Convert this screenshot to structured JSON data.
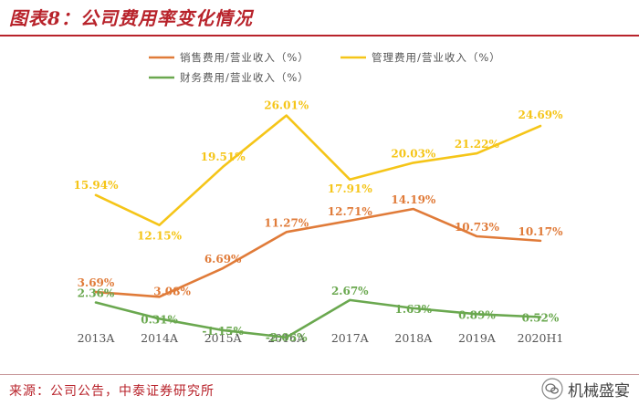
{
  "figure": {
    "title": "图表8：公司费用率变化情况",
    "source": "来源：公司公告，中泰证券研究所",
    "watermark": "机械盛宴",
    "watermark_icon": "wechat-icon",
    "accent_color": "#b8232b"
  },
  "chart_data": {
    "type": "line",
    "title": "",
    "xlabel": "",
    "ylabel": "",
    "categories": [
      "2013A",
      "2014A",
      "2015A",
      "2016A",
      "2017A",
      "2018A",
      "2019A",
      "2020H1"
    ],
    "ylim": [
      0,
      30
    ],
    "grid": false,
    "legend_position": "top",
    "series": [
      {
        "name": "销售费用/营业收入（%）",
        "color": "#e07b39",
        "values": [
          3.69,
          3.08,
          6.69,
          11.27,
          12.71,
          14.19,
          10.73,
          10.17
        ],
        "labels": [
          "3.69%",
          "3.08%",
          "6.69%",
          "11.27%",
          "12.71%",
          "14.19%",
          "10.73%",
          "10.17%"
        ]
      },
      {
        "name": "管理费用/营业收入（%）",
        "color": "#f5c518",
        "values": [
          15.94,
          12.15,
          19.51,
          26.01,
          17.91,
          20.03,
          21.22,
          24.69
        ],
        "labels": [
          "15.94%",
          "12.15%",
          "19.51%",
          "26.01%",
          "17.91%",
          "20.03%",
          "21.22%",
          "24.69%"
        ]
      },
      {
        "name": "财务费用/营业收入（%）",
        "color": "#6aa84f",
        "values": [
          2.36,
          0.31,
          -1.15,
          -2.05,
          2.67,
          1.63,
          0.89,
          0.52
        ],
        "labels": [
          "2.36%",
          "0.31%",
          "-1.15%",
          "-2.05%",
          "2.67%",
          "1.63%",
          "0.89%",
          "0.52%"
        ]
      }
    ]
  }
}
